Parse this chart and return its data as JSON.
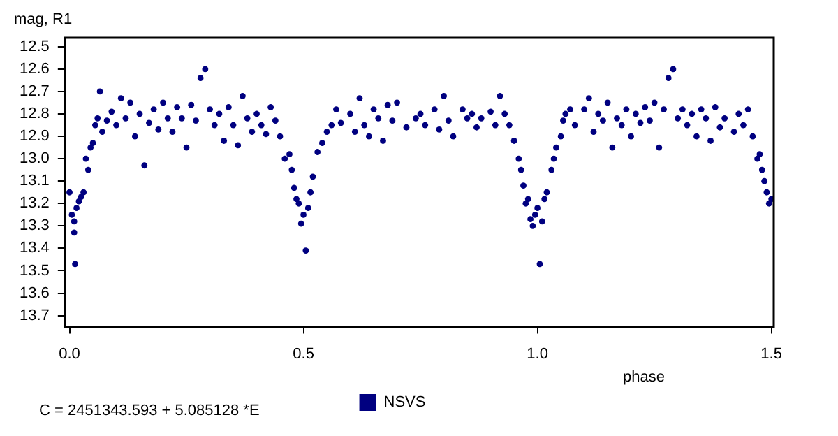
{
  "chart_data": {
    "type": "scatter",
    "ylabel": "mag, R1",
    "xlabel": "phase",
    "annotations": [
      "C = 2451343.593 + 5.085128 *E"
    ],
    "xlim": [
      -0.01,
      1.505
    ],
    "ylim": [
      13.75,
      12.46
    ],
    "xticks": [
      {
        "value": 0,
        "label": "0.0"
      },
      0.5,
      {
        "value": 1,
        "label": "1.0"
      },
      1.5
    ],
    "yticks": [
      12.5,
      12.6,
      12.7,
      12.8,
      12.9,
      {
        "value": 13,
        "label": "13.0"
      },
      13.1,
      13.2,
      13.3,
      13.4,
      13.5,
      13.6,
      13.7
    ],
    "grid": false,
    "legend": "bottom",
    "marker": "circle",
    "series": [
      {
        "name": "NSVS",
        "color": "#000080",
        "x": [
          0.0,
          0.005,
          0.01,
          0.01,
          0.012,
          0.015,
          0.02,
          0.025,
          0.03,
          0.035,
          0.04,
          0.045,
          0.05,
          0.055,
          0.06,
          0.065,
          0.07,
          0.08,
          0.09,
          0.1,
          0.11,
          0.12,
          0.13,
          0.14,
          0.15,
          0.16,
          0.17,
          0.18,
          0.19,
          0.2,
          0.21,
          0.22,
          0.23,
          0.24,
          0.25,
          0.26,
          0.27,
          0.28,
          0.29,
          0.3,
          0.31,
          0.32,
          0.33,
          0.34,
          0.35,
          0.36,
          0.37,
          0.38,
          0.39,
          0.4,
          0.41,
          0.42,
          0.43,
          0.44,
          0.45,
          0.46,
          0.47,
          0.475,
          0.48,
          0.485,
          0.49,
          0.495,
          0.5,
          0.505,
          0.51,
          0.515,
          0.52,
          0.53,
          0.54,
          0.55,
          0.56,
          0.57,
          0.58,
          0.6,
          0.61,
          0.62,
          0.63,
          0.64,
          0.65,
          0.66,
          0.67,
          0.68,
          0.69,
          0.7,
          0.72,
          0.74,
          0.75,
          0.76,
          0.78,
          0.79,
          0.8,
          0.81,
          0.82,
          0.84,
          0.85,
          0.86,
          0.87,
          0.88,
          0.9,
          0.91,
          0.92,
          0.93,
          0.94,
          0.95,
          0.96,
          0.965,
          0.97,
          0.975,
          0.98,
          0.985,
          0.99,
          0.995,
          1.0,
          1.005,
          1.01,
          1.015,
          1.02,
          1.03,
          1.035,
          1.04,
          1.05,
          1.055,
          1.06,
          1.07,
          1.08,
          1.1,
          1.11,
          1.12,
          1.13,
          1.14,
          1.15,
          1.16,
          1.17,
          1.18,
          1.19,
          1.2,
          1.21,
          1.22,
          1.23,
          1.24,
          1.25,
          1.26,
          1.27,
          1.28,
          1.29,
          1.3,
          1.31,
          1.32,
          1.33,
          1.34,
          1.35,
          1.36,
          1.37,
          1.38,
          1.39,
          1.4,
          1.42,
          1.43,
          1.44,
          1.45,
          1.46,
          1.47,
          1.475,
          1.48,
          1.485,
          1.49,
          1.495,
          1.5
        ],
        "values": [
          13.15,
          13.25,
          13.28,
          13.33,
          13.47,
          13.22,
          13.19,
          13.17,
          13.15,
          13.0,
          13.05,
          12.95,
          12.93,
          12.85,
          12.82,
          12.7,
          12.88,
          12.83,
          12.79,
          12.85,
          12.73,
          12.82,
          12.75,
          12.9,
          12.8,
          13.03,
          12.84,
          12.78,
          12.87,
          12.75,
          12.82,
          12.88,
          12.77,
          12.82,
          12.95,
          12.76,
          12.83,
          12.64,
          12.6,
          12.78,
          12.85,
          12.8,
          12.92,
          12.77,
          12.85,
          12.94,
          12.72,
          12.82,
          12.88,
          12.8,
          12.85,
          12.89,
          12.77,
          12.83,
          12.9,
          13.0,
          12.98,
          13.05,
          13.13,
          13.18,
          13.2,
          13.29,
          13.25,
          13.41,
          13.22,
          13.15,
          13.08,
          12.97,
          12.93,
          12.88,
          12.85,
          12.78,
          12.84,
          12.8,
          12.88,
          12.73,
          12.85,
          12.9,
          12.78,
          12.82,
          12.92,
          12.76,
          12.83,
          12.75,
          12.86,
          12.82,
          12.8,
          12.85,
          12.78,
          12.87,
          12.72,
          12.83,
          12.9,
          12.78,
          12.82,
          12.8,
          12.86,
          12.82,
          12.79,
          12.85,
          12.72,
          12.8,
          12.85,
          12.92,
          13.0,
          13.05,
          13.12,
          13.2,
          13.18,
          13.27,
          13.3,
          13.25,
          13.22,
          13.47,
          13.28,
          13.18,
          13.15,
          13.05,
          13.0,
          12.95,
          12.9,
          12.83,
          12.8,
          12.78,
          12.85,
          12.78,
          12.73,
          12.88,
          12.8,
          12.83,
          12.75,
          12.95,
          12.82,
          12.85,
          12.78,
          12.9,
          12.8,
          12.84,
          12.77,
          12.83,
          12.75,
          12.95,
          12.78,
          12.64,
          12.6,
          12.82,
          12.78,
          12.85,
          12.8,
          12.9,
          12.78,
          12.82,
          12.92,
          12.77,
          12.86,
          12.82,
          12.88,
          12.8,
          12.85,
          12.78,
          12.9,
          13.0,
          12.98,
          13.05,
          13.1,
          13.15,
          13.2,
          13.18
        ]
      }
    ]
  }
}
